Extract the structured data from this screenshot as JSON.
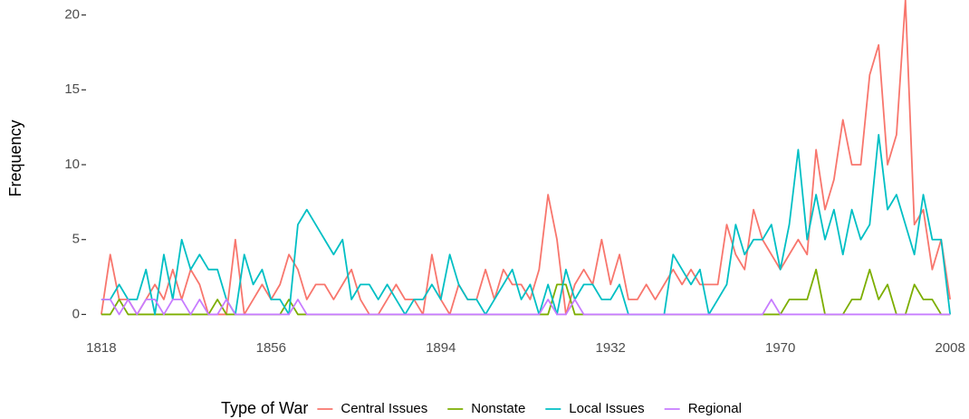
{
  "chart_data": {
    "type": "line",
    "ylabel": "Frequency",
    "legend_title": "Type of War",
    "legend_position": "bottom",
    "grid": false,
    "xlim": [
      1816,
      2010
    ],
    "xticks": [
      1818,
      1856,
      1894,
      1932,
      1970,
      2008
    ],
    "ylim": [
      -1,
      21
    ],
    "yticks": [
      0,
      5,
      10,
      15,
      20
    ],
    "x": [
      1818,
      1820,
      1822,
      1824,
      1826,
      1828,
      1830,
      1832,
      1834,
      1836,
      1838,
      1840,
      1842,
      1844,
      1846,
      1848,
      1850,
      1852,
      1854,
      1856,
      1858,
      1860,
      1862,
      1864,
      1866,
      1868,
      1870,
      1872,
      1874,
      1876,
      1878,
      1880,
      1882,
      1884,
      1886,
      1888,
      1890,
      1892,
      1894,
      1896,
      1898,
      1900,
      1902,
      1904,
      1906,
      1908,
      1910,
      1912,
      1914,
      1916,
      1918,
      1920,
      1922,
      1924,
      1926,
      1928,
      1930,
      1932,
      1934,
      1936,
      1938,
      1940,
      1942,
      1944,
      1946,
      1948,
      1950,
      1952,
      1954,
      1956,
      1958,
      1960,
      1962,
      1964,
      1966,
      1968,
      1970,
      1972,
      1974,
      1976,
      1978,
      1980,
      1982,
      1984,
      1986,
      1988,
      1990,
      1992,
      1994,
      1996,
      1998,
      2000,
      2002,
      2004,
      2006,
      2008
    ],
    "series": [
      {
        "name": "Central Issues",
        "color": "#F8766D",
        "values": [
          0,
          4,
          1,
          1,
          0,
          1,
          2,
          1,
          3,
          1,
          3,
          2,
          0,
          0,
          0,
          5,
          0,
          1,
          2,
          1,
          2,
          4,
          3,
          1,
          2,
          2,
          1,
          2,
          3,
          1,
          0,
          0,
          1,
          2,
          1,
          1,
          0,
          4,
          1,
          0,
          2,
          1,
          1,
          3,
          1,
          3,
          2,
          2,
          1,
          3,
          8,
          5,
          0,
          2,
          3,
          2,
          5,
          2,
          4,
          1,
          1,
          2,
          1,
          2,
          3,
          2,
          3,
          2,
          2,
          2,
          6,
          4,
          3,
          7,
          5,
          4,
          3,
          4,
          5,
          4,
          11,
          7,
          9,
          13,
          10,
          10,
          16,
          18,
          10,
          12,
          21,
          6,
          7,
          3,
          5,
          1
        ]
      },
      {
        "name": "Nonstate",
        "color": "#7CAE00",
        "values": [
          0,
          0,
          1,
          0,
          0,
          0,
          0,
          0,
          0,
          0,
          0,
          0,
          0,
          1,
          0,
          0,
          0,
          0,
          0,
          0,
          0,
          1,
          0,
          0,
          0,
          0,
          0,
          0,
          0,
          0,
          0,
          0,
          0,
          0,
          0,
          0,
          0,
          0,
          0,
          0,
          0,
          0,
          0,
          0,
          0,
          0,
          0,
          0,
          0,
          0,
          0,
          2,
          2,
          0,
          0,
          0,
          0,
          0,
          0,
          0,
          0,
          0,
          0,
          0,
          0,
          0,
          0,
          0,
          0,
          0,
          0,
          0,
          0,
          0,
          0,
          0,
          0,
          1,
          1,
          1,
          3,
          0,
          0,
          0,
          1,
          1,
          3,
          1,
          2,
          0,
          0,
          2,
          1,
          1,
          0,
          0
        ]
      },
      {
        "name": "Local Issues",
        "color": "#00BFC4",
        "values": [
          1,
          1,
          2,
          1,
          1,
          3,
          0,
          4,
          1,
          5,
          3,
          4,
          3,
          3,
          1,
          0,
          4,
          2,
          3,
          1,
          1,
          0,
          6,
          7,
          6,
          5,
          4,
          5,
          1,
          2,
          2,
          1,
          2,
          1,
          0,
          1,
          1,
          2,
          1,
          4,
          2,
          1,
          1,
          0,
          1,
          2,
          3,
          1,
          2,
          0,
          2,
          0,
          3,
          1,
          2,
          2,
          1,
          1,
          2,
          0,
          0,
          0,
          0,
          0,
          4,
          3,
          2,
          3,
          0,
          1,
          2,
          6,
          4,
          5,
          5,
          6,
          3,
          6,
          11,
          5,
          8,
          5,
          7,
          4,
          7,
          5,
          6,
          12,
          7,
          8,
          6,
          4,
          8,
          5,
          5,
          0
        ]
      },
      {
        "name": "Regional",
        "color": "#C77CFF",
        "values": [
          1,
          1,
          0,
          1,
          0,
          1,
          1,
          0,
          1,
          1,
          0,
          1,
          0,
          0,
          1,
          0,
          0,
          0,
          0,
          0,
          0,
          0,
          1,
          0,
          0,
          0,
          0,
          0,
          0,
          0,
          0,
          0,
          0,
          0,
          0,
          0,
          0,
          0,
          0,
          0,
          0,
          0,
          0,
          0,
          0,
          0,
          0,
          0,
          0,
          0,
          1,
          0,
          0,
          1,
          0,
          0,
          0,
          0,
          0,
          0,
          0,
          0,
          0,
          0,
          0,
          0,
          0,
          0,
          0,
          0,
          0,
          0,
          0,
          0,
          0,
          1,
          0,
          0,
          0,
          0,
          0,
          0,
          0,
          0,
          0,
          0,
          0,
          0,
          0,
          0,
          0,
          0,
          0,
          0,
          0,
          0
        ]
      }
    ]
  }
}
